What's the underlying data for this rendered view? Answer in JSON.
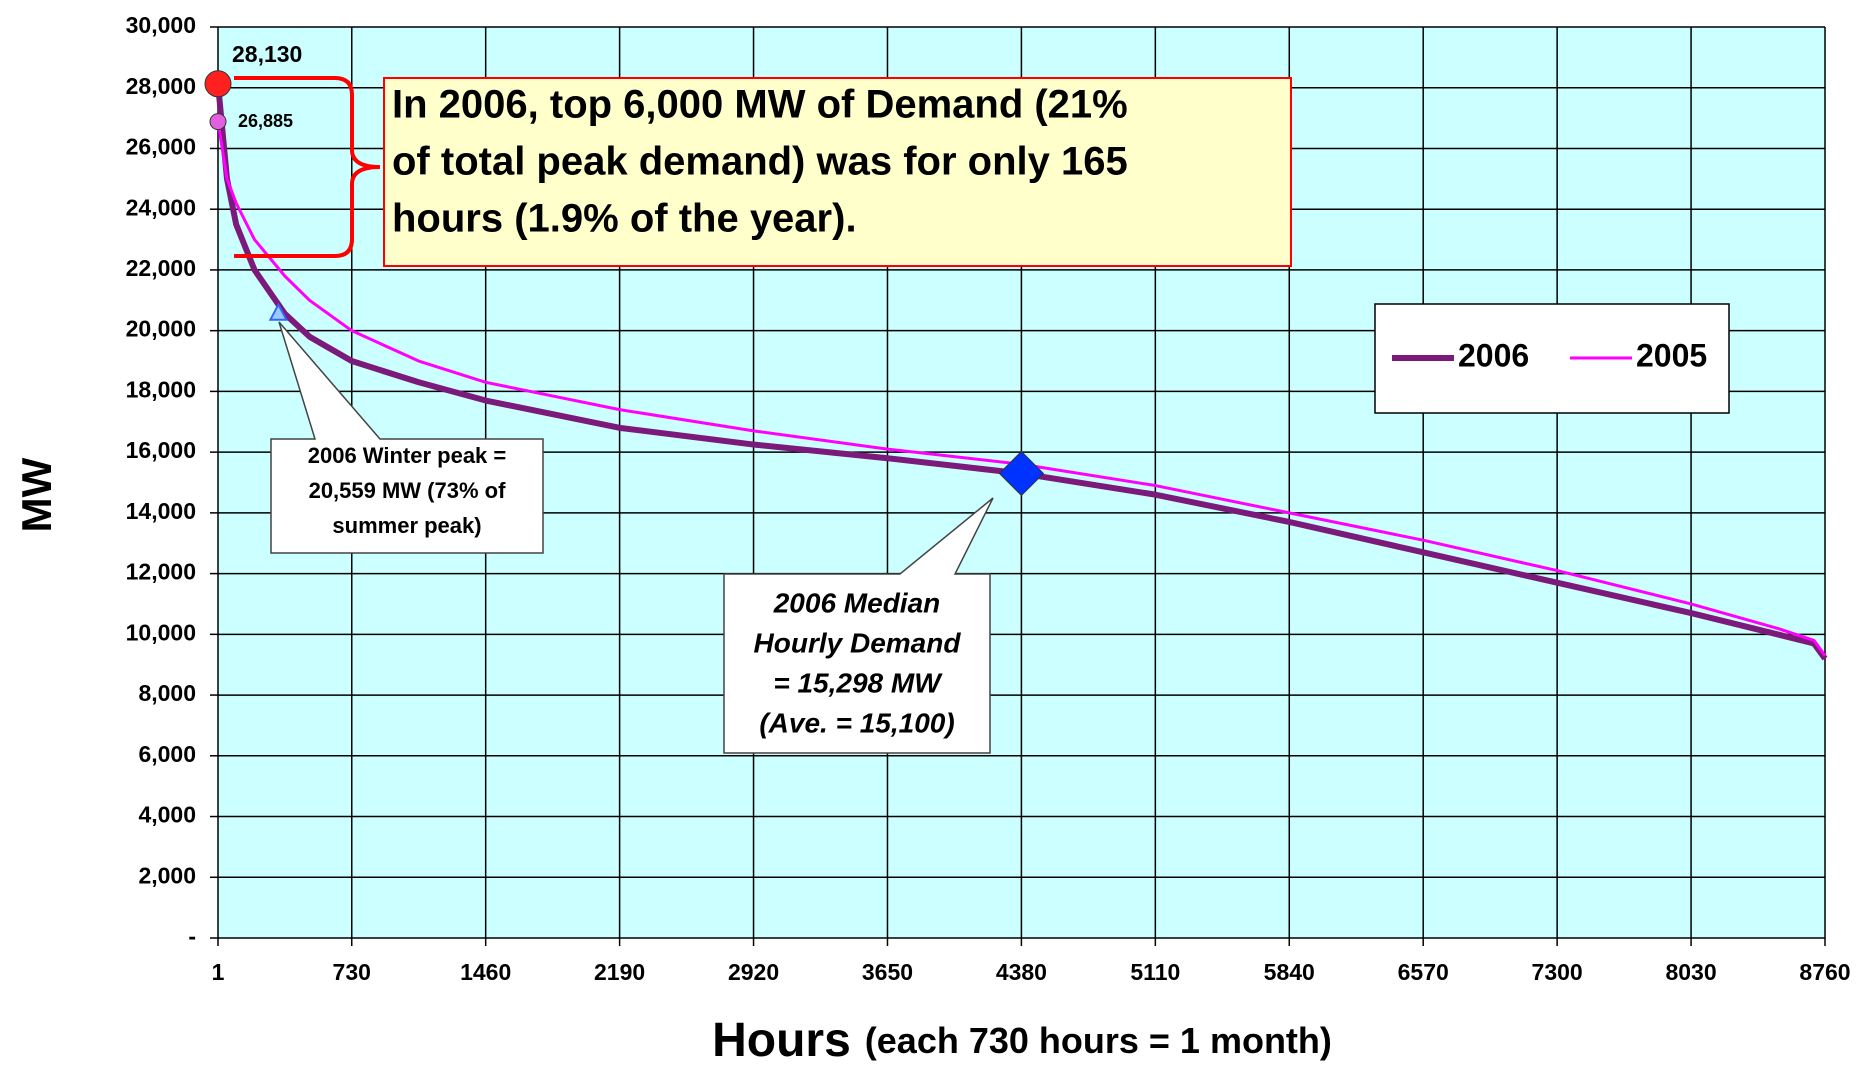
{
  "chart_data": {
    "type": "line",
    "y_label": "MW",
    "x_label": "Hours",
    "x_label_note": "(each 730 hours = 1 month)",
    "x": [
      1,
      50,
      100,
      200,
      365,
      500,
      730,
      1095,
      1460,
      2190,
      2920,
      3650,
      4380,
      5110,
      5840,
      6570,
      7300,
      8030,
      8500,
      8700,
      8760
    ],
    "series": [
      {
        "name": "2006",
        "color": "#7b1a7b",
        "width": 6,
        "values": [
          28130,
          25000,
          23500,
          22000,
          20559,
          19800,
          19000,
          18300,
          17700,
          16800,
          16250,
          15800,
          15298,
          14600,
          13700,
          12700,
          11700,
          10700,
          10000,
          9700,
          9200
        ]
      },
      {
        "name": "2005",
        "color": "#ff00ff",
        "width": 3,
        "values": [
          26885,
          25000,
          24200,
          23000,
          21800,
          21000,
          20000,
          19000,
          18300,
          17400,
          16700,
          16100,
          15600,
          14900,
          14000,
          13100,
          12100,
          11000,
          10200,
          9800,
          9300
        ]
      }
    ],
    "markers": [
      {
        "shape": "circle",
        "color": "#ff2020",
        "x": 1,
        "y": 28130
      },
      {
        "shape": "circle",
        "color": "#e060e0",
        "x": 1,
        "y": 26885
      },
      {
        "shape": "triangle",
        "color": "#3366ff",
        "x": 330,
        "y": 20559
      },
      {
        "shape": "diamond",
        "color": "#0033ff",
        "x": 4380,
        "y": 15298
      }
    ],
    "annotations": {
      "peak_2006": "28,130",
      "peak_2005": "26,885",
      "callout": [
        "In 2006, top 6,000 MW of Demand (21%",
        "of total peak demand) was for only 165",
        "hours (1.9% of the year)."
      ],
      "winter": [
        "2006 Winter peak =",
        "20,559 MW (73% of",
        "summer peak)"
      ],
      "median": [
        "2006 Median",
        "Hourly Demand",
        "= 15,298 MW",
        "(Ave. = 15,100)"
      ]
    },
    "xlim": [
      1,
      8760
    ],
    "ylim": [
      0,
      30000
    ],
    "xticks": [
      1,
      730,
      1460,
      2190,
      2920,
      3650,
      4380,
      5110,
      5840,
      6570,
      7300,
      8030,
      8760
    ],
    "yticks": [
      {
        "value": 0,
        "label": "-"
      },
      {
        "value": 2000,
        "label": "2,000"
      },
      {
        "value": 4000,
        "label": "4,000"
      },
      {
        "value": 6000,
        "label": "6,000"
      },
      {
        "value": 8000,
        "label": "8,000"
      },
      {
        "value": 10000,
        "label": "10,000"
      },
      {
        "value": 12000,
        "label": "12,000"
      },
      {
        "value": 14000,
        "label": "14,000"
      },
      {
        "value": 16000,
        "label": "16,000"
      },
      {
        "value": 18000,
        "label": "18,000"
      },
      {
        "value": 20000,
        "label": "20,000"
      },
      {
        "value": 22000,
        "label": "22,000"
      },
      {
        "value": 24000,
        "label": "24,000"
      },
      {
        "value": 26000,
        "label": "26,000"
      },
      {
        "value": 28000,
        "label": "28,000"
      },
      {
        "value": 30000,
        "label": "30,000"
      }
    ],
    "grid": true,
    "background": "#ccffff"
  }
}
